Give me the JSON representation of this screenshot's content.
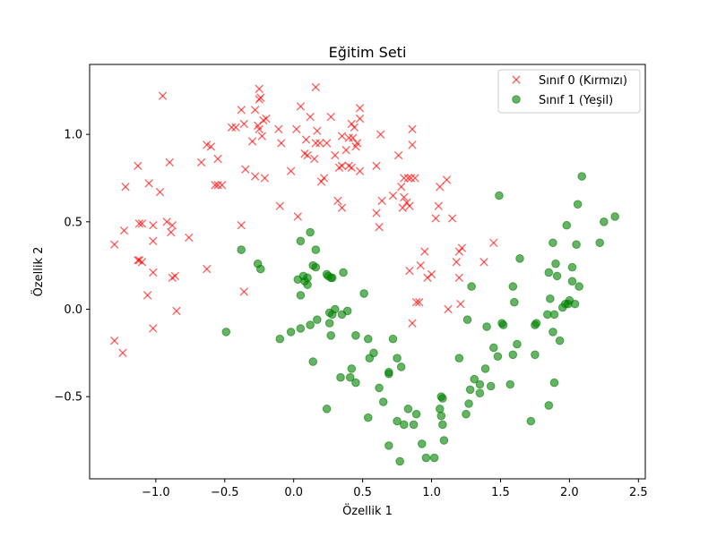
{
  "chart_data": {
    "type": "scatter",
    "title": "Eğitim Seti",
    "xlabel": "Özellik 1",
    "ylabel": "Özellik 2",
    "xlim": [
      -1.48,
      2.55
    ],
    "ylim": [
      -0.97,
      1.4
    ],
    "xticks": [
      -1.0,
      -0.5,
      0.0,
      0.5,
      1.0,
      1.5,
      2.0,
      2.5
    ],
    "xtick_labels": [
      "−1.0",
      "−0.5",
      "0.0",
      "0.5",
      "1.0",
      "1.5",
      "2.0",
      "2.5"
    ],
    "yticks": [
      -0.5,
      0.0,
      0.5,
      1.0
    ],
    "ytick_labels": [
      "−0.5",
      "0.0",
      "0.5",
      "1.0"
    ],
    "grid": false,
    "legend_position": "top-right",
    "series": [
      {
        "name": "Sınıf 0 (Kırmızı)",
        "color": "#ff0000",
        "marker": "x",
        "points": [
          [
            -0.95,
            1.22
          ],
          [
            -1.13,
            0.82
          ],
          [
            -1.22,
            0.7
          ],
          [
            -1.3,
            0.37
          ],
          [
            -1.23,
            0.45
          ],
          [
            -1.12,
            0.49
          ],
          [
            -1.1,
            0.49
          ],
          [
            -1.02,
            0.48
          ],
          [
            -0.97,
            0.67
          ],
          [
            -0.9,
            0.84
          ],
          [
            -1.05,
            0.72
          ],
          [
            -0.88,
            0.48
          ],
          [
            -0.92,
            0.5
          ],
          [
            -0.89,
            0.44
          ],
          [
            -1.02,
            0.39
          ],
          [
            -0.76,
            0.41
          ],
          [
            -1.12,
            0.28
          ],
          [
            -1.1,
            0.27
          ],
          [
            -1.13,
            0.28
          ],
          [
            -1.02,
            0.21
          ],
          [
            -0.88,
            0.18
          ],
          [
            -0.86,
            0.19
          ],
          [
            -1.06,
            0.08
          ],
          [
            -0.85,
            -0.01
          ],
          [
            -1.02,
            -0.11
          ],
          [
            -1.3,
            -0.18
          ],
          [
            -1.24,
            -0.25
          ],
          [
            -0.67,
            0.84
          ],
          [
            -0.63,
            0.94
          ],
          [
            -0.6,
            0.93
          ],
          [
            -0.55,
            0.86
          ],
          [
            -0.57,
            0.71
          ],
          [
            -0.55,
            0.71
          ],
          [
            -0.52,
            0.71
          ],
          [
            -0.45,
            1.04
          ],
          [
            -0.42,
            1.04
          ],
          [
            -0.38,
            1.14
          ],
          [
            -0.36,
            1.06
          ],
          [
            -0.3,
            0.96
          ],
          [
            -0.28,
            1.14
          ],
          [
            -0.25,
            1.2
          ],
          [
            -0.22,
            1.08
          ],
          [
            -0.26,
            1.05
          ],
          [
            -0.25,
            1.26
          ],
          [
            -0.24,
            1.21
          ],
          [
            -0.2,
            1.09
          ],
          [
            -0.25,
            1.03
          ],
          [
            -0.23,
            0.99
          ],
          [
            -0.35,
            0.8
          ],
          [
            -0.28,
            0.76
          ],
          [
            -0.21,
            0.75
          ],
          [
            -0.38,
            0.48
          ],
          [
            -0.63,
            0.23
          ],
          [
            -0.36,
            0.1
          ],
          [
            -0.11,
            1.03
          ],
          [
            -0.09,
            0.95
          ],
          [
            -0.02,
            0.79
          ],
          [
            0.05,
            1.16
          ],
          [
            0.02,
            1.03
          ],
          [
            0.09,
            0.97
          ],
          [
            0.08,
            0.89
          ],
          [
            0.1,
            0.88
          ],
          [
            0.12,
            1.1
          ],
          [
            0.16,
            0.95
          ],
          [
            0.19,
            0.95
          ],
          [
            0.17,
            1.02
          ],
          [
            0.15,
            0.86
          ],
          [
            0.22,
            0.75
          ],
          [
            0.2,
            0.73
          ],
          [
            0.16,
            1.27
          ],
          [
            0.03,
            0.53
          ],
          [
            -0.1,
            0.59
          ],
          [
            0.24,
            0.95
          ],
          [
            0.27,
            1.1
          ],
          [
            0.3,
            0.88
          ],
          [
            0.33,
            0.81
          ],
          [
            0.35,
            0.82
          ],
          [
            0.32,
            0.62
          ],
          [
            0.35,
            0.58
          ],
          [
            0.38,
            0.91
          ],
          [
            0.4,
            0.98
          ],
          [
            0.43,
            0.98
          ],
          [
            0.45,
            0.93
          ],
          [
            0.44,
            1.04
          ],
          [
            0.46,
            0.95
          ],
          [
            0.48,
            1.15
          ],
          [
            0.48,
            1.09
          ],
          [
            0.42,
            1.06
          ],
          [
            0.35,
            0.99
          ],
          [
            0.4,
            0.82
          ],
          [
            0.42,
            0.81
          ],
          [
            0.48,
            0.79
          ],
          [
            0.6,
            0.82
          ],
          [
            0.63,
            1.0
          ],
          [
            0.6,
            0.55
          ],
          [
            0.62,
            0.47
          ],
          [
            0.64,
            0.62
          ],
          [
            0.72,
            0.65
          ],
          [
            0.78,
            0.7
          ],
          [
            0.8,
            0.64
          ],
          [
            0.79,
            0.58
          ],
          [
            0.76,
            0.88
          ],
          [
            0.83,
            0.75
          ],
          [
            0.85,
            0.75
          ],
          [
            0.88,
            0.75
          ],
          [
            0.86,
            0.94
          ],
          [
            0.86,
            1.03
          ],
          [
            0.8,
            0.75
          ],
          [
            0.82,
            0.61
          ],
          [
            0.84,
            0.59
          ],
          [
            0.95,
            0.33
          ],
          [
            0.92,
            0.25
          ],
          [
            1.0,
            0.2
          ],
          [
            1.03,
            0.52
          ],
          [
            1.05,
            0.59
          ],
          [
            1.06,
            0.7
          ],
          [
            1.11,
            0.74
          ],
          [
            1.15,
            0.52
          ],
          [
            1.2,
            0.33
          ],
          [
            1.22,
            0.35
          ],
          [
            1.18,
            0.27
          ],
          [
            1.2,
            0.18
          ],
          [
            1.12,
            0.0
          ],
          [
            1.21,
            0.03
          ],
          [
            0.97,
            0.18
          ],
          [
            0.89,
            0.04
          ],
          [
            0.91,
            0.04
          ],
          [
            0.86,
            -0.08
          ],
          [
            0.84,
            0.22
          ],
          [
            1.38,
            0.27
          ],
          [
            1.45,
            0.38
          ]
        ]
      },
      {
        "name": "Sınıf 1 (Yeşil)",
        "color": "#008000",
        "marker": "o",
        "points": [
          [
            -0.49,
            -0.13
          ],
          [
            -0.38,
            0.34
          ],
          [
            -0.26,
            0.26
          ],
          [
            -0.24,
            0.23
          ],
          [
            -0.1,
            -0.17
          ],
          [
            -0.02,
            -0.13
          ],
          [
            0.03,
            0.17
          ],
          [
            0.07,
            0.19
          ],
          [
            0.08,
            0.16
          ],
          [
            0.1,
            0.18
          ],
          [
            0.14,
            0.25
          ],
          [
            0.12,
            0.44
          ],
          [
            0.16,
            0.34
          ],
          [
            0.05,
            0.39
          ],
          [
            0.16,
            0.24
          ],
          [
            0.1,
            0.14
          ],
          [
            0.05,
            0.08
          ],
          [
            0.05,
            -0.11
          ],
          [
            0.12,
            -0.09
          ],
          [
            0.17,
            -0.06
          ],
          [
            0.14,
            -0.3
          ],
          [
            0.24,
            -0.57
          ],
          [
            0.24,
            0.2
          ],
          [
            0.25,
            0.19
          ],
          [
            0.28,
            0.18
          ],
          [
            0.27,
            0.18
          ],
          [
            0.36,
            0.21
          ],
          [
            0.26,
            -0.02
          ],
          [
            0.28,
            -0.03
          ],
          [
            0.3,
            0.0
          ],
          [
            0.26,
            -0.08
          ],
          [
            0.27,
            -0.15
          ],
          [
            0.35,
            -0.03
          ],
          [
            0.39,
            -0.01
          ],
          [
            0.34,
            -0.39
          ],
          [
            0.41,
            -0.39
          ],
          [
            0.42,
            -0.34
          ],
          [
            0.45,
            -0.42
          ],
          [
            0.45,
            -0.15
          ],
          [
            0.51,
            0.09
          ],
          [
            0.54,
            -0.17
          ],
          [
            0.55,
            -0.28
          ],
          [
            0.58,
            -0.25
          ],
          [
            0.62,
            -0.45
          ],
          [
            0.65,
            -0.53
          ],
          [
            0.69,
            -0.36
          ],
          [
            0.69,
            -0.37
          ],
          [
            0.72,
            -0.17
          ],
          [
            0.75,
            -0.28
          ],
          [
            0.78,
            -0.33
          ],
          [
            0.54,
            -0.62
          ],
          [
            0.69,
            -0.78
          ],
          [
            0.75,
            -0.64
          ],
          [
            0.8,
            -0.66
          ],
          [
            0.83,
            -0.57
          ],
          [
            0.87,
            -0.66
          ],
          [
            0.89,
            -0.6
          ],
          [
            0.77,
            -0.87
          ],
          [
            0.93,
            -0.77
          ],
          [
            0.96,
            -0.85
          ],
          [
            1.02,
            -0.85
          ],
          [
            1.06,
            -0.57
          ],
          [
            1.07,
            -0.5
          ],
          [
            1.08,
            -0.51
          ],
          [
            1.08,
            -0.66
          ],
          [
            1.09,
            -0.75
          ],
          [
            1.07,
            -0.61
          ],
          [
            1.2,
            -0.28
          ],
          [
            1.25,
            -0.6
          ],
          [
            1.27,
            -0.54
          ],
          [
            1.28,
            -0.46
          ],
          [
            1.31,
            -0.4
          ],
          [
            1.35,
            -0.48
          ],
          [
            1.35,
            -0.43
          ],
          [
            1.39,
            -0.34
          ],
          [
            1.43,
            -0.44
          ],
          [
            1.4,
            -0.1
          ],
          [
            1.45,
            -0.22
          ],
          [
            1.48,
            -0.27
          ],
          [
            1.51,
            -0.08
          ],
          [
            1.52,
            -0.09
          ],
          [
            1.57,
            -0.43
          ],
          [
            1.59,
            -0.26
          ],
          [
            1.62,
            -0.2
          ],
          [
            1.59,
            0.13
          ],
          [
            1.6,
            0.04
          ],
          [
            1.64,
            0.29
          ],
          [
            1.49,
            0.65
          ],
          [
            1.29,
            0.13
          ],
          [
            1.26,
            -0.06
          ],
          [
            1.72,
            -0.64
          ],
          [
            1.75,
            -0.26
          ],
          [
            1.75,
            -0.09
          ],
          [
            1.76,
            -0.08
          ],
          [
            1.84,
            -0.03
          ],
          [
            1.85,
            0.21
          ],
          [
            1.86,
            0.06
          ],
          [
            1.88,
            0.38
          ],
          [
            1.9,
            0.26
          ],
          [
            1.91,
            0.19
          ],
          [
            1.85,
            -0.55
          ],
          [
            1.89,
            -0.42
          ],
          [
            1.88,
            -0.13
          ],
          [
            1.89,
            -0.03
          ],
          [
            1.93,
            -0.18
          ],
          [
            1.95,
            0.01
          ],
          [
            1.97,
            0.03
          ],
          [
            1.98,
            0.48
          ],
          [
            1.99,
            0.03
          ],
          [
            2.0,
            0.05
          ],
          [
            2.02,
            0.24
          ],
          [
            2.02,
            0.16
          ],
          [
            2.05,
            0.37
          ],
          [
            2.06,
            0.6
          ],
          [
            2.07,
            0.13
          ],
          [
            2.09,
            0.76
          ],
          [
            2.04,
            0.03
          ],
          [
            2.22,
            0.38
          ],
          [
            2.25,
            0.5
          ],
          [
            2.33,
            0.53
          ]
        ]
      }
    ]
  }
}
